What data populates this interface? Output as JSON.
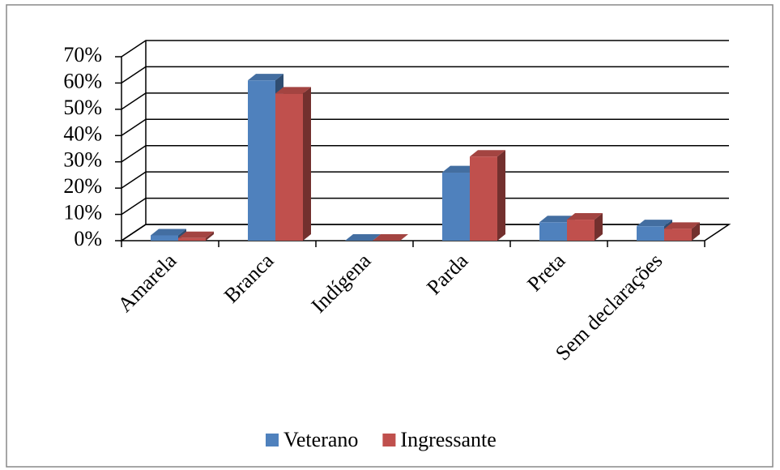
{
  "chart_data": {
    "type": "bar3d",
    "categories": [
      "Amarela",
      "Branca",
      "Indígena",
      "Parda",
      "Preta",
      "Sem declarações"
    ],
    "series": [
      {
        "name": "Veterano",
        "color": "#4f81bd",
        "values": [
          2,
          61,
          0,
          26,
          7,
          5.5
        ]
      },
      {
        "name": "Ingressante",
        "color": "#c0504d",
        "values": [
          1,
          56,
          0,
          32,
          8,
          4.5
        ]
      }
    ],
    "ylim": [
      0,
      70
    ],
    "yticks": [
      {
        "value": 0,
        "label": "0%"
      },
      {
        "value": 10,
        "label": "10%"
      },
      {
        "value": 20,
        "label": "20%"
      },
      {
        "value": 30,
        "label": "30%"
      },
      {
        "value": 40,
        "label": "40%"
      },
      {
        "value": 50,
        "label": "50%"
      },
      {
        "value": 60,
        "label": "60%"
      },
      {
        "value": 70,
        "label": "70%"
      }
    ],
    "grid": true,
    "legend": "bottom"
  }
}
